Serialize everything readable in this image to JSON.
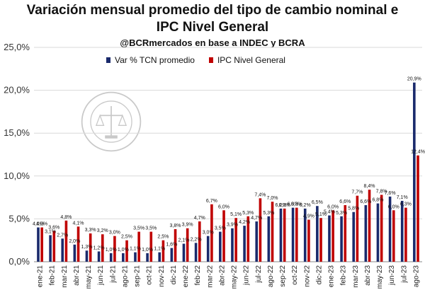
{
  "title_line1": "Variación mensual promedio del tipo de cambio nominal e",
  "title_line2": "IPC Nivel General",
  "subtitle": "@BCRmercados en base a INDEC y BCRA",
  "colors": {
    "tcn": "#1a2a6c",
    "ipc": "#c00000"
  },
  "chart_data": {
    "type": "bar",
    "title": "Variación mensual promedio del tipo de cambio nominal e IPC Nivel General",
    "subtitle": "@BCRmercados en base a INDEC y BCRA",
    "xlabel": "",
    "ylabel": "",
    "ylim": [
      0,
      25
    ],
    "yticks": [
      "0,0%",
      "5,0%",
      "10,0%",
      "15,0%",
      "20,0%",
      "25,0%"
    ],
    "grid": true,
    "legend": "top-left",
    "categories": [
      "ene-21",
      "feb-21",
      "mar-21",
      "abr-21",
      "may-21",
      "jun-21",
      "jul-21",
      "ago-21",
      "sep-21",
      "oct-21",
      "nov-21",
      "dic-21",
      "ene-22",
      "feb-22",
      "mar-22",
      "abr-22",
      "may-22",
      "jun-22",
      "jul-22",
      "ago-22",
      "sep-22",
      "oct-22",
      "nov-22",
      "dic-22",
      "ene-23",
      "feb-23",
      "mar-23",
      "abr-23",
      "may-23",
      "jun-23",
      "jul-23",
      "ago-23"
    ],
    "series": [
      {
        "name": "Var % TCN promedio",
        "values": [
          4.0,
          3.1,
          2.7,
          2.0,
          1.3,
          1.2,
          1.0,
          1.0,
          1.1,
          1.0,
          1.1,
          1.6,
          2.1,
          2.2,
          3.0,
          3.5,
          3.9,
          4.2,
          4.7,
          5.3,
          6.2,
          6.3,
          6.2,
          6.5,
          5.4,
          5.3,
          5.8,
          6.6,
          6.8,
          7.6,
          7.1,
          20.9
        ],
        "labels": [
          "4,0%",
          "3,1%",
          "2,7%",
          "2,0%",
          "1,3%",
          "1,2%",
          "1,0%",
          "1,0%",
          "1,1%",
          "1,0%",
          "1,1%",
          "1,6%",
          "2,1%",
          "2,2%",
          "3,0%",
          "3,5%",
          "3,9%",
          "4,2%",
          "4,7%",
          "5,3%",
          "6,2%",
          "6,3%",
          "6,2%",
          "6,5%",
          "5,4%",
          "5,3%",
          "5,8%",
          "6,6%",
          "6,8%",
          "7,6%",
          "7,1%",
          "20,9%"
        ]
      },
      {
        "name": "IPC Nivel General",
        "values": [
          4.0,
          3.6,
          4.8,
          4.1,
          3.3,
          3.2,
          3.0,
          2.5,
          3.5,
          3.5,
          2.5,
          3.8,
          3.9,
          4.7,
          6.7,
          6.0,
          5.1,
          5.3,
          7.4,
          7.0,
          6.2,
          6.3,
          4.9,
          5.1,
          6.0,
          6.6,
          7.7,
          8.4,
          7.8,
          6.0,
          6.3,
          12.4
        ],
        "labels": [
          "4,0%",
          "3,6%",
          "4,8%",
          "4,1%",
          "3,3%",
          "3,2%",
          "3,0%",
          "2,5%",
          "3,5%",
          "3,5%",
          "2,5%",
          "3,8%",
          "3,9%",
          "4,7%",
          "6,7%",
          "6,0%",
          "5,1%",
          "5,3%",
          "7,4%",
          "7,0%",
          "6,2%",
          "6,3%",
          "4,9%",
          "5,1%",
          "6,0%",
          "6,6%",
          "7,7%",
          "8,4%",
          "7,8%",
          "6,0%",
          "6,3%",
          "12,4%"
        ]
      }
    ]
  }
}
